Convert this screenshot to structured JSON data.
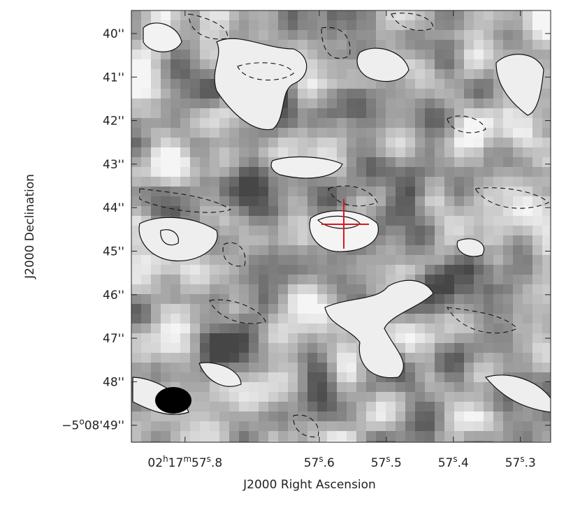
{
  "chart_data": {
    "type": "image-map",
    "x_label": "J2000 Right Ascension",
    "y_label": "J2000 Declination",
    "xlim": [
      57.88,
      57.255
    ],
    "ylim": [
      39.47,
      49.39
    ],
    "xticks": [
      {
        "value": 57.8,
        "label": "02h17m57s.8"
      },
      {
        "value": 57.6,
        "label": "57s.6"
      },
      {
        "value": 57.5,
        "label": "57s.5"
      },
      {
        "value": 57.4,
        "label": "57s.4"
      },
      {
        "value": 57.3,
        "label": "57s.3"
      }
    ],
    "yticks": [
      {
        "value": 40,
        "label": "40''"
      },
      {
        "value": 41,
        "label": "41''"
      },
      {
        "value": 42,
        "label": "42''"
      },
      {
        "value": 43,
        "label": "43''"
      },
      {
        "value": 44,
        "label": "44''"
      },
      {
        "value": 45,
        "label": "45''"
      },
      {
        "value": 46,
        "label": "46''"
      },
      {
        "value": 47,
        "label": "47''"
      },
      {
        "value": 48,
        "label": "48''"
      },
      {
        "value": 49,
        "label": "−5o08'49''"
      }
    ]
  }
}
